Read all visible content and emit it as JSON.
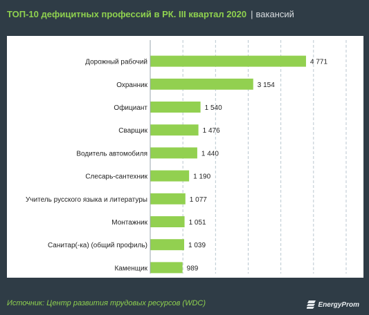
{
  "title": "ТОП-10 дефицитных профессий в РК. III квартал 2020",
  "title_separator": "|",
  "unit": "вакансий",
  "source": "Источник: Центр развития трудовых ресурсов (WDC)",
  "logo": {
    "text": "EnergyProm",
    "icon": "energyprom-logo-icon"
  },
  "colors": {
    "bar": "#92d050",
    "background": "#2f3c46",
    "accent": "#8fd14f"
  },
  "chart_data": {
    "type": "bar",
    "orientation": "horizontal",
    "categories": [
      "Дорожный рабочий",
      "Охранник",
      "Официант",
      "Сварщик",
      "Водитель автомобиля",
      "Слесарь-сантехник",
      "Учитель русского языка и литературы",
      "Монтажник",
      "Санитар(-ка) (общий профиль)",
      "Каменщик"
    ],
    "values": [
      4771,
      3154,
      1540,
      1476,
      1440,
      1190,
      1077,
      1051,
      1039,
      989
    ],
    "value_labels": [
      "4 771",
      "3 154",
      "1 540",
      "1 476",
      "1 440",
      "1 190",
      "1 077",
      "1 051",
      "1 039",
      "989"
    ],
    "xlim": [
      0,
      6000
    ],
    "grid": true,
    "grid_style": "dashed vertical"
  }
}
